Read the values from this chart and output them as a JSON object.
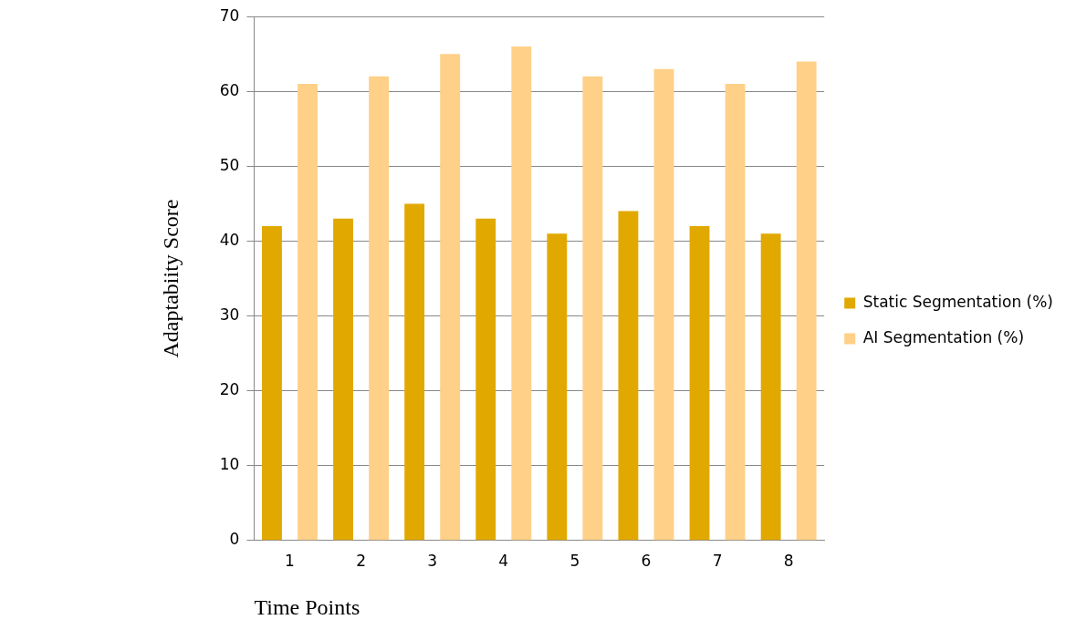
{
  "chart_data": {
    "type": "bar",
    "xlabel": "Time Points",
    "ylabel": "Adaptabiity Score",
    "categories": [
      "1",
      "2",
      "3",
      "4",
      "5",
      "6",
      "7",
      "8"
    ],
    "series": [
      {
        "name": "Static Segmentation (%)",
        "color": "#e1a900",
        "values": [
          42,
          43,
          45,
          43,
          41,
          44,
          42,
          41
        ]
      },
      {
        "name": "AI Segmentation (%)",
        "color": "#fed088",
        "values": [
          61,
          62,
          65,
          66,
          62,
          63,
          61,
          64
        ]
      }
    ],
    "ylim": [
      0,
      70
    ],
    "yticks": [
      0,
      10,
      20,
      30,
      40,
      50,
      60,
      70
    ],
    "grid": "y",
    "legend": "right"
  }
}
